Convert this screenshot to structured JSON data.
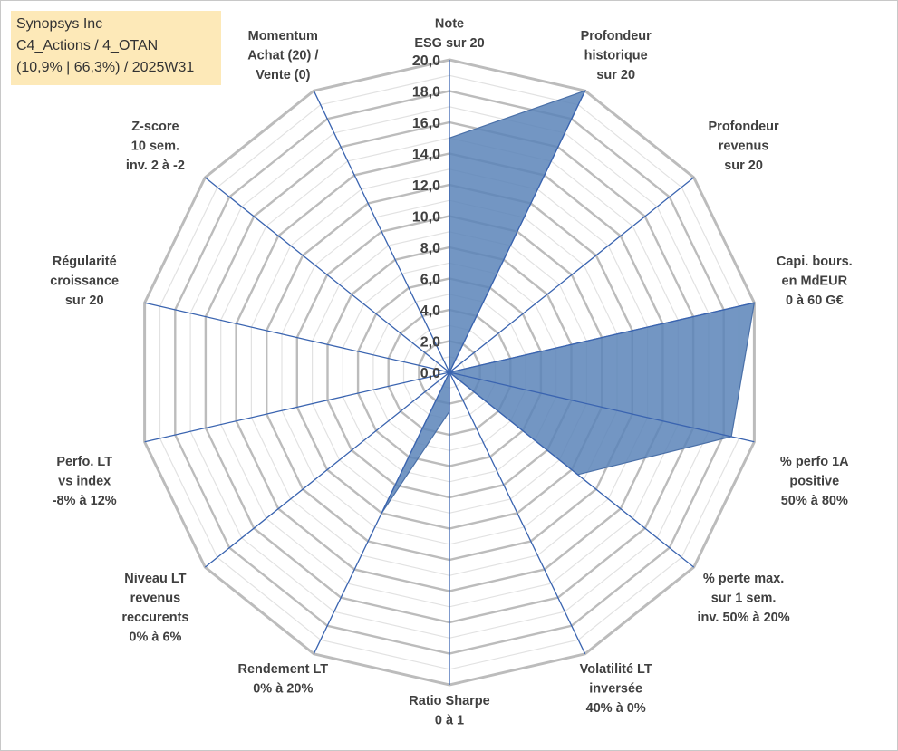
{
  "header": {
    "lines": [
      "Synopsys Inc",
      "C4_Actions / 4_OTAN",
      "(10,9% | 66,3%) / 2025W31"
    ]
  },
  "chart_data": {
    "type": "radar",
    "title": "",
    "rlim": [
      0,
      20
    ],
    "ticks": [
      "0,0",
      "2,0",
      "4,0",
      "6,0",
      "8,0",
      "10,0",
      "12,0",
      "14,0",
      "16,0",
      "18,0",
      "20,0"
    ],
    "grid": true,
    "axes": [
      {
        "label": [
          "Note",
          "ESG sur 20"
        ]
      },
      {
        "label": [
          "Profondeur",
          "historique",
          "sur 20"
        ]
      },
      {
        "label": [
          "Profondeur",
          "revenus",
          "sur 20"
        ]
      },
      {
        "label": [
          "Capi. bours.",
          "en MdEUR",
          "0 à 60 G€"
        ]
      },
      {
        "label": [
          "% perfo 1A",
          "positive",
          "50% à 80%"
        ]
      },
      {
        "label": [
          "% perte max.",
          "sur 1 sem.",
          "inv. 50% à 20%"
        ]
      },
      {
        "label": [
          "Volatilité LT",
          "inversée",
          "40% à 0%"
        ]
      },
      {
        "label": [
          "Ratio Sharpe",
          "0 à 1"
        ]
      },
      {
        "label": [
          "Rendement LT",
          "0% à 20%"
        ]
      },
      {
        "label": [
          "Niveau LT",
          "revenus",
          "reccurents",
          "0% à 6%"
        ]
      },
      {
        "label": [
          "Perfo. LT",
          "vs index",
          "-8% à 12%"
        ]
      },
      {
        "label": [
          "Régularité",
          "croissance",
          "sur 20"
        ]
      },
      {
        "label": [
          "Z-score",
          "10 sem.",
          "inv. 2 à -2"
        ]
      },
      {
        "label": [
          "Momentum",
          "Achat (20) /",
          "Vente (0)"
        ]
      }
    ],
    "series": [
      {
        "values": [
          15,
          20,
          0,
          20,
          18.5,
          10.5,
          0,
          2.5,
          10,
          0,
          0,
          0,
          0,
          0
        ]
      }
    ],
    "colors": {
      "fill": "#5b84b8",
      "stroke": "#4a70a8",
      "spoke": "#3a64b0",
      "grid_major": "#bcbcbc",
      "grid_minor": "#e2e2e2"
    }
  }
}
